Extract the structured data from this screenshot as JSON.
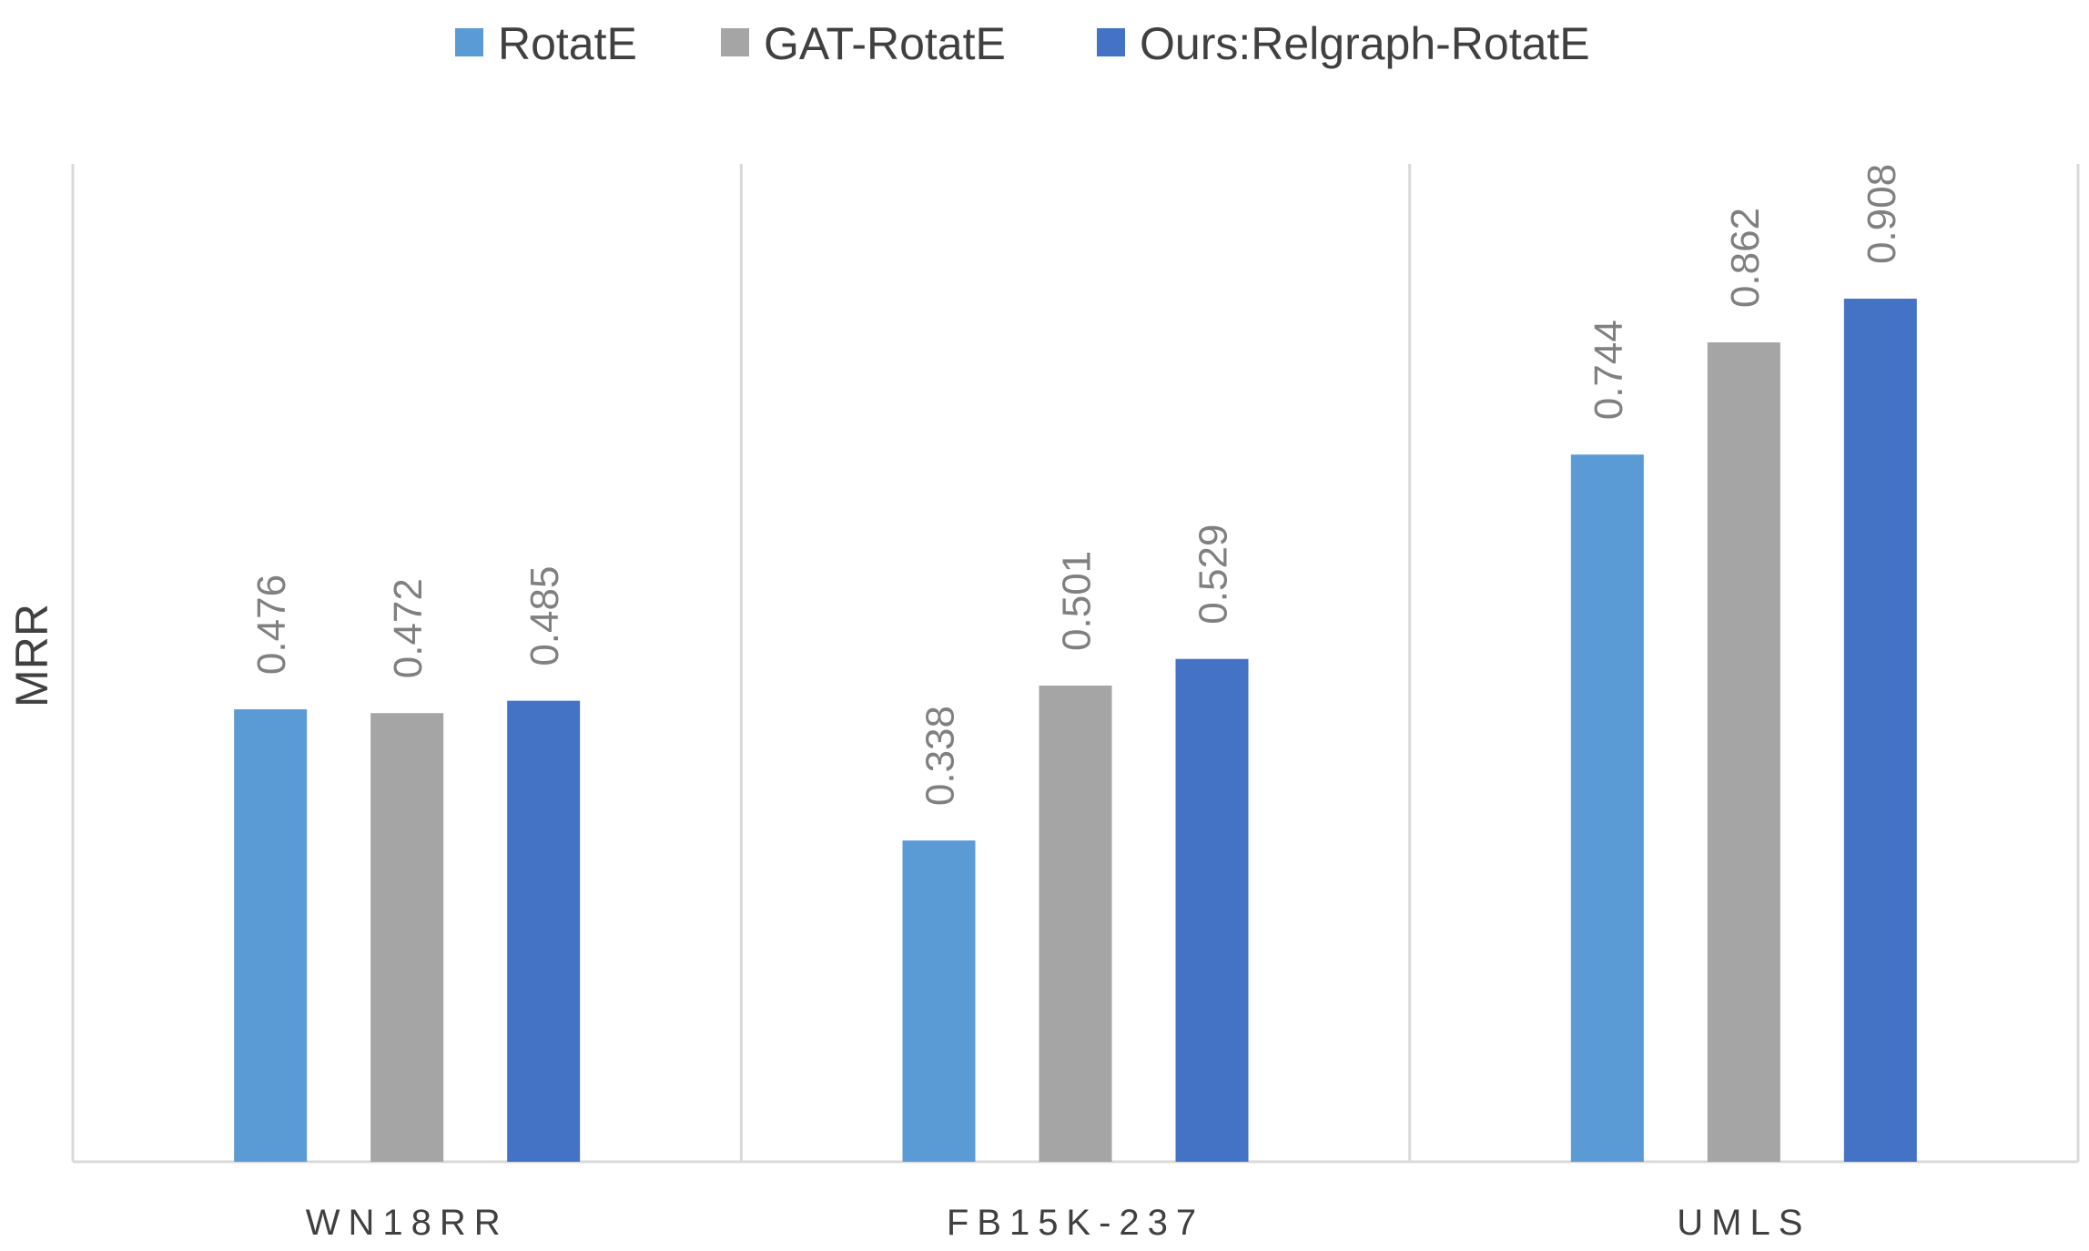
{
  "chart_data": {
    "type": "bar",
    "ylabel": "MRR",
    "xlabel": "",
    "categories": [
      "WN18RR",
      "FB15K-237",
      "UMLS"
    ],
    "series": [
      {
        "name": "RotatE",
        "color": "#5B9BD5",
        "values": [
          0.476,
          0.338,
          0.744
        ]
      },
      {
        "name": "GAT-RotatE",
        "color": "#A5A5A5",
        "values": [
          0.472,
          0.501,
          0.862
        ]
      },
      {
        "name": "Ours:Relgraph-RotatE",
        "color": "#4472C4",
        "values": [
          0.485,
          0.529,
          0.908
        ]
      }
    ],
    "ylim": [
      0,
      1
    ],
    "legend_position": "top-center",
    "data_labels": true,
    "grid": "vertical category separators"
  }
}
